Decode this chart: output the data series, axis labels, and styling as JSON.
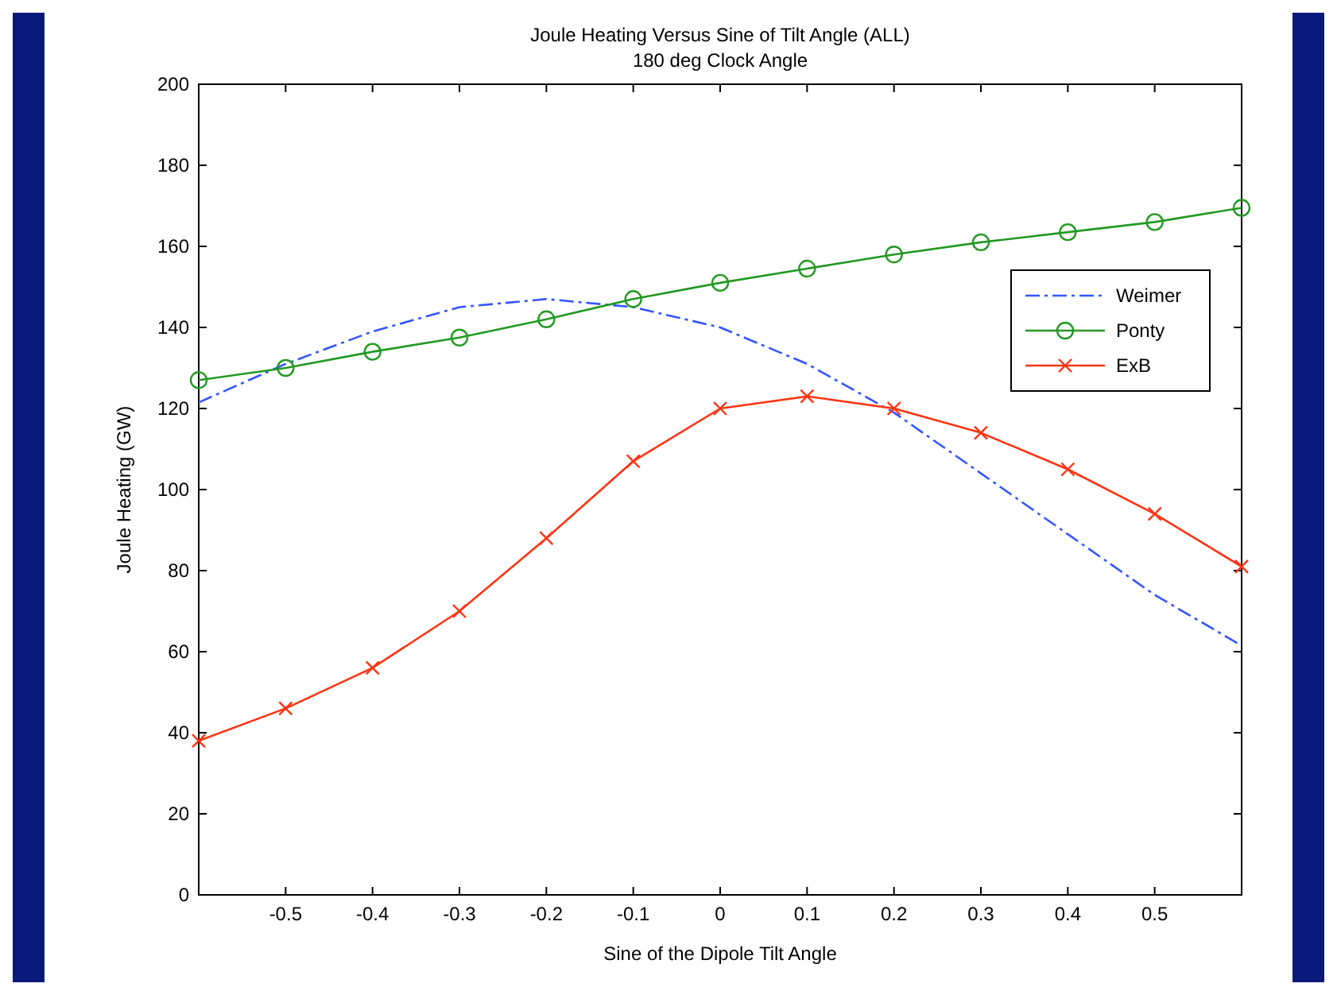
{
  "chart_data": {
    "type": "line",
    "title": "Joule Heating Versus Sine of Tilt Angle (ALL)",
    "subtitle": "180 deg Clock Angle",
    "xlabel": "Sine of the Dipole Tilt Angle",
    "ylabel": "Joule Heating (GW)",
    "x": [
      -0.6,
      -0.5,
      -0.4,
      -0.3,
      -0.2,
      -0.1,
      0,
      0.1,
      0.2,
      0.3,
      0.4,
      0.5,
      0.6
    ],
    "series": [
      {
        "name": "Weimer",
        "color": "#3355ff",
        "marker": "none",
        "line_style": "dashed",
        "values": [
          121.5,
          131,
          139,
          145,
          147,
          145,
          140,
          131,
          119,
          104,
          89,
          74,
          61.5
        ]
      },
      {
        "name": "Ponty",
        "color": "#229922",
        "marker": "circle",
        "line_style": "solid",
        "values": [
          127,
          130,
          134,
          137.5,
          142,
          147,
          151,
          154.5,
          158,
          161,
          163.5,
          166,
          169.5
        ]
      },
      {
        "name": "ExB",
        "color": "#ff3311",
        "marker": "cross",
        "line_style": "solid",
        "values": [
          38,
          46,
          56,
          70,
          88,
          107,
          120,
          123,
          120,
          114,
          105,
          94,
          81
        ]
      }
    ],
    "xlim": [
      -0.6,
      0.6
    ],
    "xticks": [
      -0.5,
      -0.4,
      -0.3,
      -0.2,
      -0.1,
      0,
      0.1,
      0.2,
      0.3,
      0.4,
      0.5
    ],
    "ylim": [
      0,
      200
    ],
    "yticks": [
      0,
      20,
      40,
      60,
      80,
      100,
      120,
      140,
      160,
      180,
      200
    ],
    "grid": false,
    "legend": "top right"
  }
}
